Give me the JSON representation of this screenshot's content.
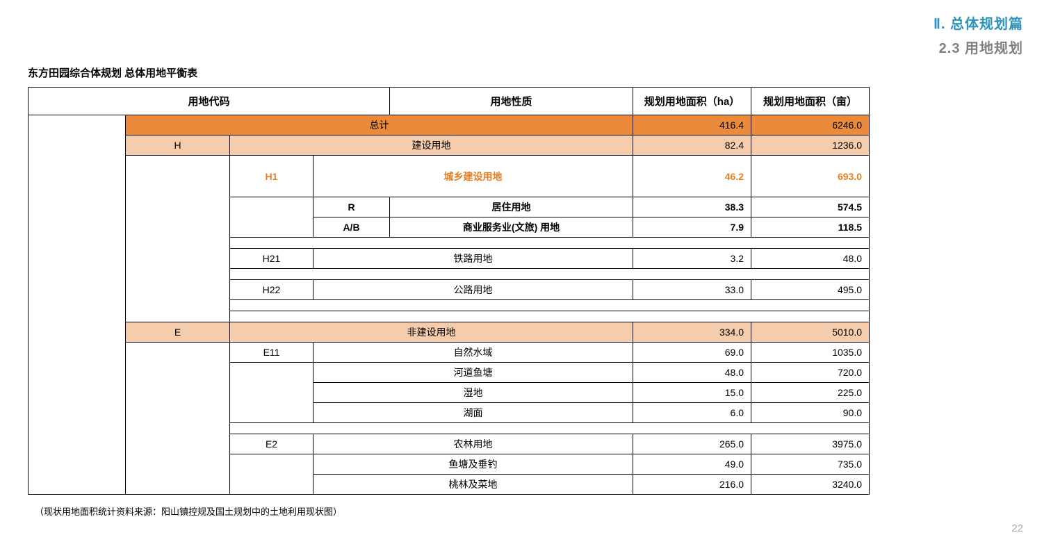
{
  "header": {
    "chapter": "Ⅱ. 总体规划篇",
    "section": "2.3 用地规划"
  },
  "table": {
    "caption": "东方田园综合体规划  总体用地平衡表",
    "columns": {
      "code": "用地代码",
      "nature": "用地性质",
      "area_ha": "规划用地面积（ha）",
      "area_mu": "规划用地面积（亩）"
    },
    "rows": {
      "total": {
        "label": "总计",
        "ha": "416.4",
        "mu": "6246.0"
      },
      "H": {
        "code": "H",
        "label": "建设用地",
        "ha": "82.4",
        "mu": "1236.0"
      },
      "H1": {
        "code": "H1",
        "label": "城乡建设用地",
        "ha": "46.2",
        "mu": "693.0"
      },
      "R": {
        "code": "R",
        "label": "居住用地",
        "ha": "38.3",
        "mu": "574.5"
      },
      "AB": {
        "code": "A/B",
        "label": "商业服务业(文旅) 用地",
        "ha": "7.9",
        "mu": "118.5"
      },
      "H21": {
        "code": "H21",
        "label": "铁路用地",
        "ha": "3.2",
        "mu": "48.0"
      },
      "H22": {
        "code": "H22",
        "label": "公路用地",
        "ha": "33.0",
        "mu": "495.0"
      },
      "E": {
        "code": "E",
        "label": "非建设用地",
        "ha": "334.0",
        "mu": "5010.0"
      },
      "E11": {
        "code": "E11",
        "label": "自然水域",
        "ha": "69.0",
        "mu": "1035.0"
      },
      "E11a": {
        "label": "河道鱼塘",
        "ha": "48.0",
        "mu": "720.0"
      },
      "E11b": {
        "label": "湿地",
        "ha": "15.0",
        "mu": "225.0"
      },
      "E11c": {
        "label": "湖面",
        "ha": "6.0",
        "mu": "90.0"
      },
      "E2": {
        "code": "E2",
        "label": "农林用地",
        "ha": "265.0",
        "mu": "3975.0"
      },
      "E2a": {
        "label": "鱼塘及垂钓",
        "ha": "49.0",
        "mu": "735.0"
      },
      "E2b": {
        "label": "桃林及菜地",
        "ha": "216.0",
        "mu": "3240.0"
      }
    }
  },
  "footnote": "（现状用地面积统计资料来源：阳山镇控规及国土规划中的土地利用现状图）",
  "page_number": "22",
  "styling": {
    "orange_bg": "#ec8a3b",
    "peach_bg": "#f5ccac",
    "orange_text": "#e67e22",
    "chapter_color": "#2c94b8",
    "section_color": "#808080",
    "border_color": "#000000",
    "background": "#ffffff",
    "page_num_color": "#aaaaaa"
  }
}
